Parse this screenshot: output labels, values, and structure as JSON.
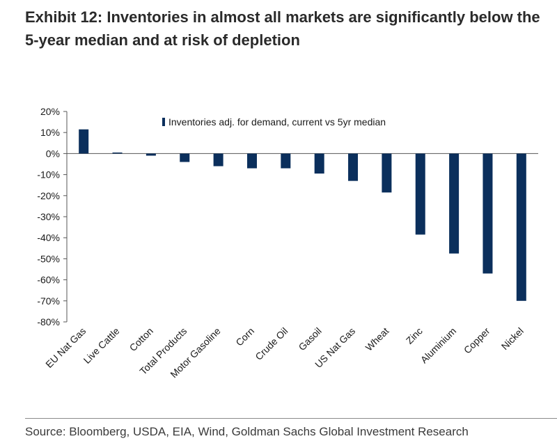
{
  "title": "Exhibit 12: Inventories in almost all markets are significantly below the 5-year median and at risk of depletion",
  "source": "Source: Bloomberg, USDA, EIA, Wind, Goldman Sachs Global Investment Research",
  "colors": {
    "bar": "#0b2f5c",
    "axis": "#555555",
    "text": "#1a1a1a"
  },
  "chart_data": {
    "type": "bar",
    "title": "",
    "xlabel": "",
    "ylabel": "",
    "ylim": [
      -80,
      20
    ],
    "yticks": [
      20,
      10,
      0,
      -10,
      -20,
      -30,
      -40,
      -50,
      -60,
      -70,
      -80
    ],
    "yticks_format": "percent",
    "legend_position": "top",
    "grid": false,
    "categories": [
      "EU Nat Gas",
      "Live Cattle",
      "Cotton",
      "Total Products",
      "Motor Gasoline",
      "Corn",
      "Crude Oil",
      "Gasoil",
      "US Nat Gas",
      "Wheat",
      "Zinc",
      "Aluminium",
      "Copper",
      "Nickel"
    ],
    "series": [
      {
        "name": "Inventories adj. for demand, current vs 5yr median",
        "values": [
          11.5,
          0.5,
          -1,
          -4,
          -6,
          -7,
          -7,
          -9.5,
          -13,
          -18.5,
          -38.5,
          -47.5,
          -57,
          -70
        ]
      }
    ]
  }
}
